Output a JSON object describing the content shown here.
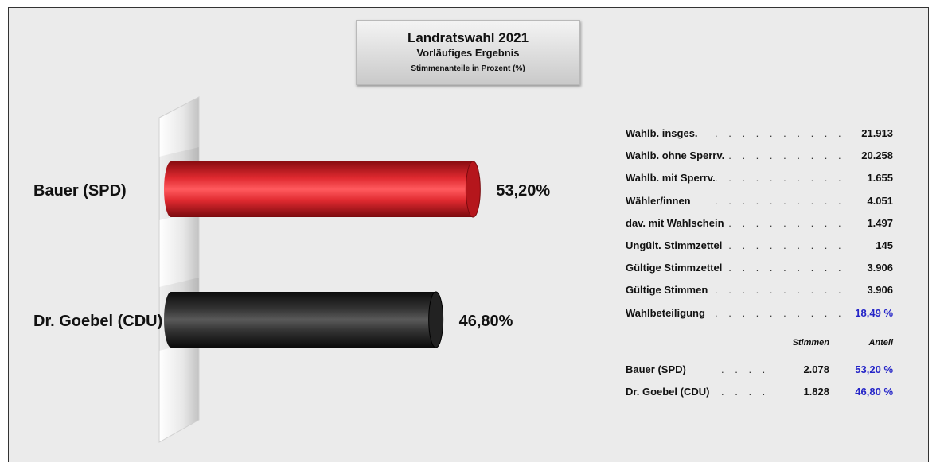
{
  "header": {
    "title": "Landratswahl 2021",
    "subtitle": "Vorläufiges Ergebnis",
    "note": "Stimmenanteile in Prozent (%)"
  },
  "chart_data": {
    "type": "bar",
    "orientation": "horizontal",
    "categories": [
      "Bauer (SPD)",
      "Dr. Goebel (CDU)"
    ],
    "values": [
      53.2,
      46.8
    ],
    "value_labels": [
      "53,20%",
      "46,80%"
    ],
    "colors": [
      "#d81f26",
      "#2b2b2b"
    ],
    "xlim": [
      0,
      100
    ],
    "grid": false,
    "legend": "none"
  },
  "stats": {
    "rows": [
      {
        "label": "Wahlb. insges.",
        "value": "21.913"
      },
      {
        "label": "Wahlb. ohne Sperrv.",
        "value": "20.258"
      },
      {
        "label": "Wahlb. mit Sperrv.",
        "value": "1.655"
      },
      {
        "label": "Wähler/innen",
        "value": "4.051"
      },
      {
        "label": "dav. mit Wahlschein",
        "value": "1.497"
      },
      {
        "label": "Ungült. Stimmzettel",
        "value": "145"
      },
      {
        "label": "Gültige Stimmzettel",
        "value": "3.906"
      },
      {
        "label": "Gültige Stimmen",
        "value": "3.906"
      },
      {
        "label": "Wahlbeteiligung",
        "value": "18,49 %",
        "highlight": true
      }
    ],
    "col_votes": "Stimmen",
    "col_share": "Anteil",
    "results": [
      {
        "label": "Bauer (SPD)",
        "votes": "2.078",
        "share": "53,20 %"
      },
      {
        "label": "Dr. Goebel (CDU)",
        "votes": "1.828",
        "share": "46,80 %"
      }
    ]
  }
}
